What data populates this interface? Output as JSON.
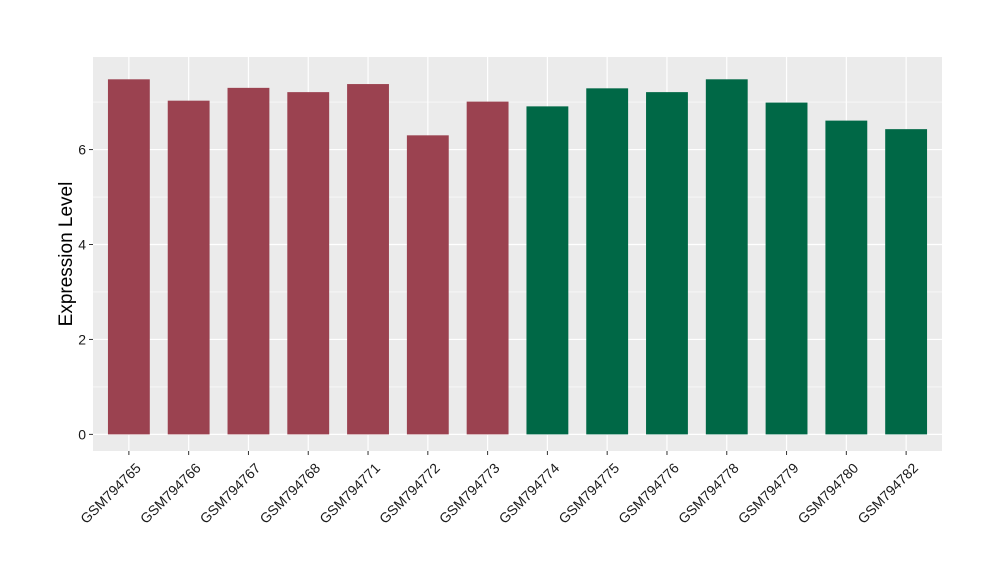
{
  "chart_data": {
    "type": "bar",
    "title": "",
    "xlabel": "",
    "ylabel": "Expression Level",
    "ylim": [
      -0.35,
      7.95
    ],
    "yticks": [
      0,
      2,
      4,
      6
    ],
    "grid": true,
    "legend": "none",
    "panel_background": "#ebebeb",
    "grid_color": "#ffffff",
    "categories": [
      "GSM794765",
      "GSM794766",
      "GSM794767",
      "GSM794768",
      "GSM794771",
      "GSM794772",
      "GSM794773",
      "GSM794774",
      "GSM794775",
      "GSM794776",
      "GSM794778",
      "GSM794779",
      "GSM794780",
      "GSM794782"
    ],
    "values": [
      7.48,
      7.03,
      7.3,
      7.21,
      7.38,
      6.3,
      7.01,
      6.91,
      7.29,
      7.21,
      7.48,
      6.99,
      6.61,
      6.43
    ],
    "bar_colors": [
      "#9b4250",
      "#9b4250",
      "#9b4250",
      "#9b4250",
      "#9b4250",
      "#9b4250",
      "#9b4250",
      "#006846",
      "#006846",
      "#006846",
      "#006846",
      "#006846",
      "#006846",
      "#006846"
    ]
  }
}
